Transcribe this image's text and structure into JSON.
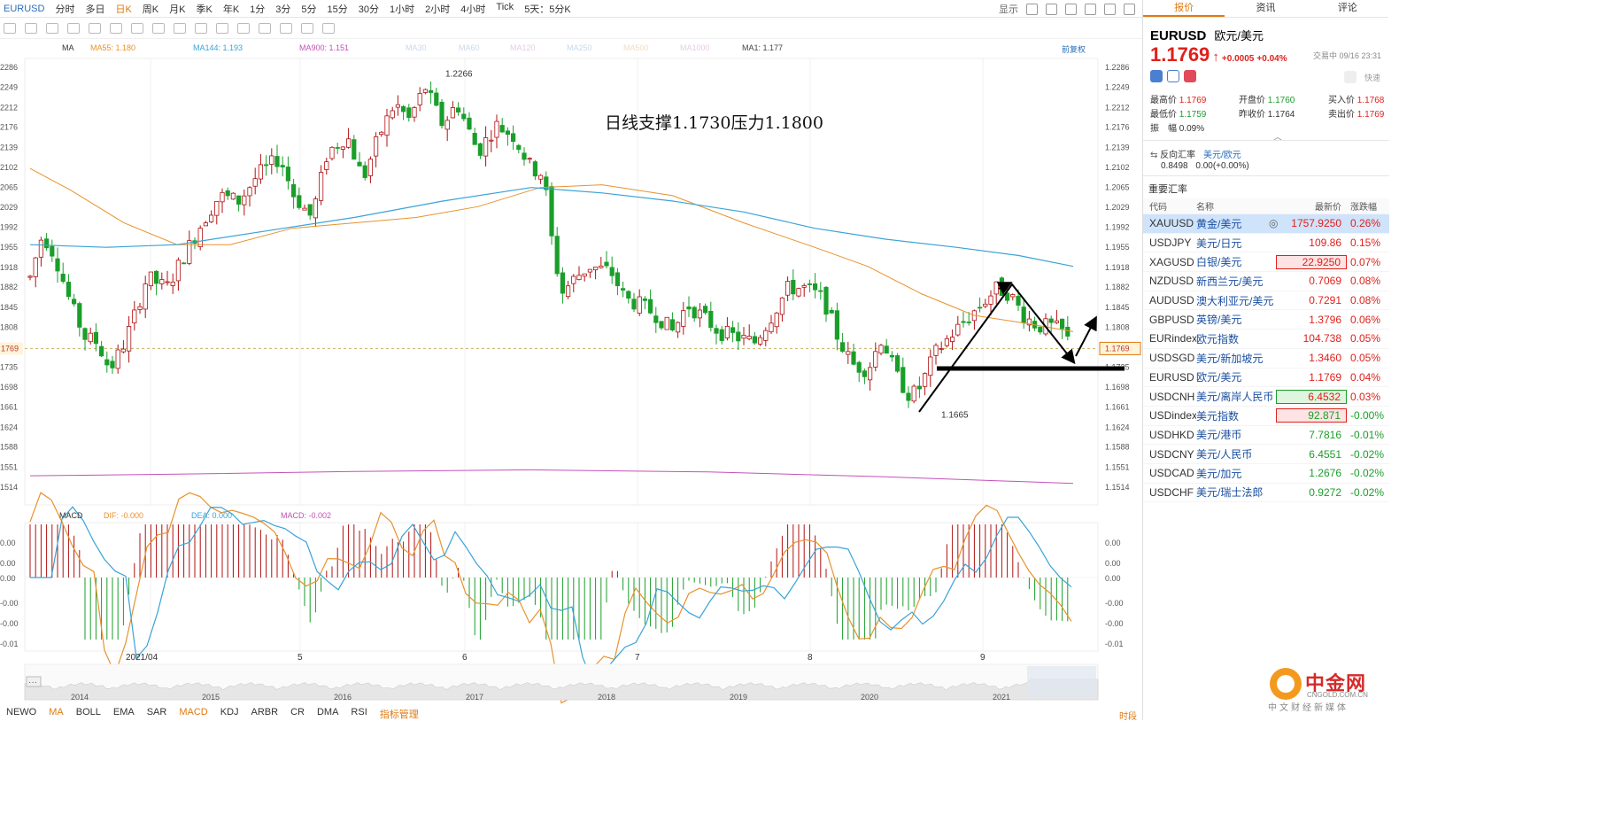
{
  "toolbar": {
    "symbol": "EURUSD",
    "periods": [
      "分时",
      "多日",
      "日K",
      "周K",
      "月K",
      "季K",
      "年K",
      "1分",
      "3分",
      "5分",
      "15分",
      "30分",
      "1小时",
      "2小时",
      "4小时",
      "Tick",
      "5天：5分K"
    ],
    "active_period": "日K",
    "display_label": "显示",
    "restore_label": "前复权"
  },
  "ma_legend": {
    "title": "MA",
    "items": [
      {
        "label": "MA55: 1.180",
        "color": "#e8922d"
      },
      {
        "label": "MA144: 1.193",
        "color": "#3aa3d6"
      },
      {
        "label": "MA900: 1.151",
        "color": "#c451b8"
      },
      {
        "label": "MA30",
        "color": "#c9d8ec"
      },
      {
        "label": "MA60",
        "color": "#c9d8ec"
      },
      {
        "label": "MA120",
        "color": "#e6cde6"
      },
      {
        "label": "MA250",
        "color": "#c9d8ec"
      },
      {
        "label": "MA500",
        "color": "#f1dcc0"
      },
      {
        "label": "MA1000",
        "color": "#e6cde6"
      },
      {
        "label": "MA1: 1.177",
        "color": "#444"
      }
    ]
  },
  "macd_legend": {
    "title": "MACD",
    "items": [
      {
        "label": "DIF: -0.000",
        "color": "#e8922d"
      },
      {
        "label": "DEA: 0.000",
        "color": "#3aa3d6"
      },
      {
        "label": "MACD: -0.002",
        "color": "#c451b8"
      }
    ]
  },
  "annotation": "日线支撑1.1730压力1.1800",
  "price_axis": [
    "1.2286",
    "1.2249",
    "1.2212",
    "1.2176",
    "1.2139",
    "1.2102",
    "1.2065",
    "1.2029",
    "1.1992",
    "1.1955",
    "1.1918",
    "1.1882",
    "1.1845",
    "1.1808",
    "1.1769",
    "1.1735",
    "1.1698",
    "1.1661",
    "1.1624",
    "1.1588",
    "1.1551",
    "1.1514"
  ],
  "price_axis_left": [
    "2286",
    "2249",
    "2212",
    "2176",
    "2139",
    "2102",
    "2065",
    "2029",
    "1992",
    "1955",
    "1918",
    "1882",
    "1845",
    "1808",
    "1769",
    "1735",
    "1698",
    "1661",
    "1624",
    "1588",
    "1551",
    "1514"
  ],
  "high_label": "1.2266",
  "low_label": "1.1665",
  "current_price_tag": "1.1769",
  "macd_axis": [
    "0.00",
    "0.00",
    "0.00",
    "-0.00",
    "-0.00",
    "-0.01"
  ],
  "macd_axis_left": [
    "0.00",
    "0.00",
    "0.00",
    "-0.00",
    "-0.00",
    "-0.01"
  ],
  "time_axis": [
    "2021/04",
    "5",
    "6",
    "7",
    "8",
    "9"
  ],
  "nav_years": [
    "2014",
    "2015",
    "2016",
    "2017",
    "2018",
    "2019",
    "2020",
    "2021"
  ],
  "nav_ellipsis": "···",
  "indicators": [
    "NEWO",
    "MA",
    "BOLL",
    "EMA",
    "SAR",
    "MACD",
    "KDJ",
    "ARBR",
    "CR",
    "DMA",
    "RSI",
    "指标管理"
  ],
  "active_indicators": [
    "MA",
    "MACD"
  ],
  "right_corner_label": "时段",
  "panel": {
    "tabs": [
      "报价",
      "资讯",
      "评论"
    ],
    "code": "EURUSD",
    "name": "欧元/美元",
    "price": "1.1769",
    "change": "+0.0005",
    "change_pct": "+0.04%",
    "status": "交易中 09/16 23:31",
    "quick_trade": "快速",
    "stats": {
      "high_label": "最高价",
      "high": "1.1769",
      "open_label": "开盘价",
      "open": "1.1760",
      "bid_label": "买入价",
      "bid": "1.1768",
      "low_label": "最低价",
      "low": "1.1759",
      "prev_label": "昨收价",
      "prev": "1.1764",
      "ask_label": "卖出价",
      "ask": "1.1769",
      "amp_label": "振　幅",
      "amp": "0.09%"
    },
    "reverse": {
      "label": "反向汇率",
      "pair": "美元/欧元",
      "value": "0.8498",
      "change": "0.00(+0.00%)"
    },
    "section_title": "重要汇率",
    "table_headers": [
      "代码",
      "名称",
      "最新价",
      "涨跌幅"
    ],
    "rows": [
      {
        "code": "XAUUSD",
        "name": "黄金/美元",
        "price": "1757.9250",
        "pct": "0.26%",
        "dir": "up",
        "sel": true,
        "hl": ""
      },
      {
        "code": "USDJPY",
        "name": "美元/日元",
        "price": "109.86",
        "pct": "0.15%",
        "dir": "up",
        "sel": false,
        "hl": ""
      },
      {
        "code": "XAGUSD",
        "name": "白银/美元",
        "price": "22.9250",
        "pct": "0.07%",
        "dir": "up",
        "sel": false,
        "hl": "red"
      },
      {
        "code": "NZDUSD",
        "name": "新西兰元/美元",
        "price": "0.7069",
        "pct": "0.08%",
        "dir": "up",
        "sel": false,
        "hl": ""
      },
      {
        "code": "AUDUSD",
        "name": "澳大利亚元/美元",
        "price": "0.7291",
        "pct": "0.08%",
        "dir": "up",
        "sel": false,
        "hl": ""
      },
      {
        "code": "GBPUSD",
        "name": "英镑/美元",
        "price": "1.3796",
        "pct": "0.06%",
        "dir": "up",
        "sel": false,
        "hl": ""
      },
      {
        "code": "EURindex",
        "name": "欧元指数",
        "price": "104.738",
        "pct": "0.05%",
        "dir": "up",
        "sel": false,
        "hl": ""
      },
      {
        "code": "USDSGD",
        "name": "美元/新加坡元",
        "price": "1.3460",
        "pct": "0.05%",
        "dir": "up",
        "sel": false,
        "hl": ""
      },
      {
        "code": "EURUSD",
        "name": "欧元/美元",
        "price": "1.1769",
        "pct": "0.04%",
        "dir": "up",
        "sel": false,
        "hl": ""
      },
      {
        "code": "USDCNH",
        "name": "美元/离岸人民币",
        "price": "6.4532",
        "pct": "0.03%",
        "dir": "up",
        "sel": false,
        "hl": "green"
      },
      {
        "code": "USDindex",
        "name": "美元指数",
        "price": "92.871",
        "pct": "-0.00%",
        "dir": "down",
        "sel": false,
        "hl": "red"
      },
      {
        "code": "USDHKD",
        "name": "美元/港币",
        "price": "7.7816",
        "pct": "-0.01%",
        "dir": "down",
        "sel": false,
        "hl": ""
      },
      {
        "code": "USDCNY",
        "name": "美元/人民币",
        "price": "6.4551",
        "pct": "-0.02%",
        "dir": "down",
        "sel": false,
        "hl": ""
      },
      {
        "code": "USDCAD",
        "name": "美元/加元",
        "price": "1.2676",
        "pct": "-0.02%",
        "dir": "down",
        "sel": false,
        "hl": ""
      },
      {
        "code": "USDCHF",
        "name": "美元/瑞士法郎",
        "price": "0.9272",
        "pct": "-0.02%",
        "dir": "down",
        "sel": false,
        "hl": ""
      }
    ]
  },
  "watermark": {
    "brand": "中金网",
    "url": "CNGOLD.COM.CN",
    "tagline": "中文财经新媒体"
  },
  "colors": {
    "up": "#b01010",
    "down": "#1a9e2a",
    "ma55": "#e8922d",
    "ma144": "#3aa3d6",
    "ma900": "#c451b8",
    "accent": "#e07a12"
  }
}
